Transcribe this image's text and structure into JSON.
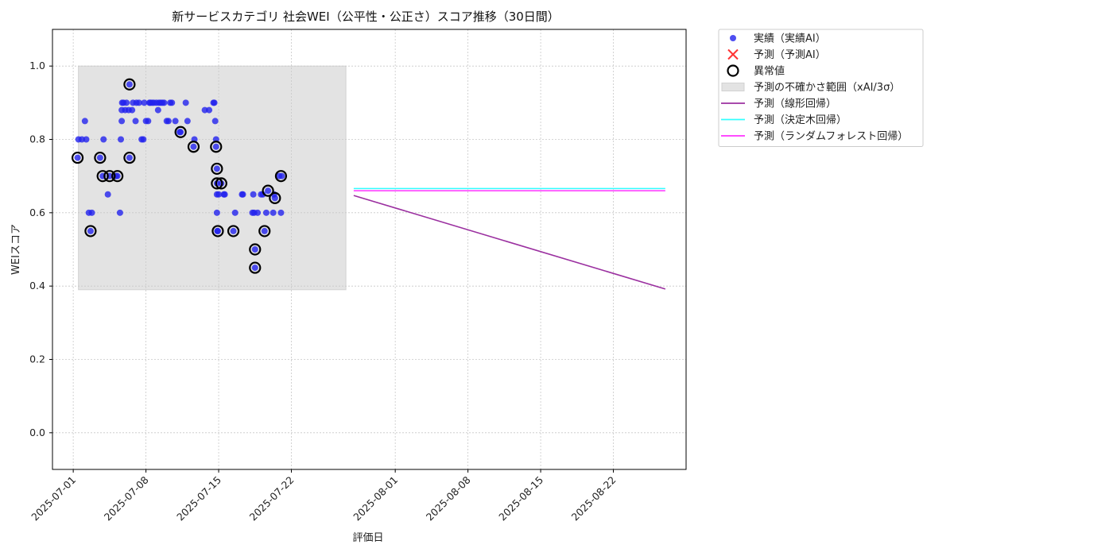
{
  "chart_data": {
    "type": "scatter",
    "title": "新サービスカテゴリ 社会WEI（公平性・公正さ）スコア推移（30日間）",
    "xlabel": "評価日",
    "ylabel": "WEIスコア",
    "xlim": [
      "2025-06-29",
      "2025-08-29"
    ],
    "ylim": [
      -0.1,
      1.1
    ],
    "grid": true,
    "x_ticks": [
      "2025-07-01",
      "2025-07-08",
      "2025-07-15",
      "2025-07-22",
      "2025-08-01",
      "2025-08-08",
      "2025-08-15",
      "2025-08-22"
    ],
    "y_ticks": [
      0.0,
      0.2,
      0.4,
      0.6,
      0.8,
      1.0
    ],
    "uncertainty_band": {
      "label": "予測の不確かさ範囲（xAI/3σ）",
      "x_start": "2025-07-01T12:00",
      "x_end": "2025-07-27T06:00",
      "y_low": 0.39,
      "y_high": 1.0,
      "color": "#e3e3e3"
    },
    "actual": {
      "label": "実績（実績AI）",
      "color": "#2222ee",
      "points": [
        {
          "x": "2025-07-01T10:00",
          "y": 0.75
        },
        {
          "x": "2025-07-01T12:00",
          "y": 0.8
        },
        {
          "x": "2025-07-01T20:00",
          "y": 0.8
        },
        {
          "x": "2025-07-02T03:00",
          "y": 0.85
        },
        {
          "x": "2025-07-02T06:00",
          "y": 0.8
        },
        {
          "x": "2025-07-02T12:00",
          "y": 0.6
        },
        {
          "x": "2025-07-02T16:00",
          "y": 0.55
        },
        {
          "x": "2025-07-02T19:00",
          "y": 0.6
        },
        {
          "x": "2025-07-03T14:00",
          "y": 0.75
        },
        {
          "x": "2025-07-03T22:00",
          "y": 0.8
        },
        {
          "x": "2025-07-03T20:00",
          "y": 0.7
        },
        {
          "x": "2025-07-04T08:00",
          "y": 0.65
        },
        {
          "x": "2025-07-04T12:00",
          "y": 0.7
        },
        {
          "x": "2025-07-05T03:00",
          "y": 0.7
        },
        {
          "x": "2025-07-05T06:00",
          "y": 0.7
        },
        {
          "x": "2025-07-05T12:00",
          "y": 0.6
        },
        {
          "x": "2025-07-05T14:00",
          "y": 0.8
        },
        {
          "x": "2025-07-05T16:00",
          "y": 0.85
        },
        {
          "x": "2025-07-05T16:00",
          "y": 0.88
        },
        {
          "x": "2025-07-05T17:00",
          "y": 0.9
        },
        {
          "x": "2025-07-05T20:00",
          "y": 0.9
        },
        {
          "x": "2025-07-06T00:00",
          "y": 0.88
        },
        {
          "x": "2025-07-06T03:00",
          "y": 0.9
        },
        {
          "x": "2025-07-06T08:00",
          "y": 0.88
        },
        {
          "x": "2025-07-06T10:00",
          "y": 0.95
        },
        {
          "x": "2025-07-06T10:00",
          "y": 0.75
        },
        {
          "x": "2025-07-06T16:00",
          "y": 0.88
        },
        {
          "x": "2025-07-06T18:00",
          "y": 0.9
        },
        {
          "x": "2025-07-07T00:00",
          "y": 0.85
        },
        {
          "x": "2025-07-07T02:00",
          "y": 0.9
        },
        {
          "x": "2025-07-07T08:00",
          "y": 0.9
        },
        {
          "x": "2025-07-07T14:00",
          "y": 0.8
        },
        {
          "x": "2025-07-07T18:00",
          "y": 0.8
        },
        {
          "x": "2025-07-07T20:00",
          "y": 0.9
        },
        {
          "x": "2025-07-08T00:00",
          "y": 0.85
        },
        {
          "x": "2025-07-08T05:00",
          "y": 0.85
        },
        {
          "x": "2025-07-08T08:00",
          "y": 0.9
        },
        {
          "x": "2025-07-08T10:00",
          "y": 0.9
        },
        {
          "x": "2025-07-08T14:00",
          "y": 0.9
        },
        {
          "x": "2025-07-08T18:00",
          "y": 0.9
        },
        {
          "x": "2025-07-09T00:00",
          "y": 0.9
        },
        {
          "x": "2025-07-09T04:00",
          "y": 0.88
        },
        {
          "x": "2025-07-09T06:00",
          "y": 0.9
        },
        {
          "x": "2025-07-09T10:00",
          "y": 0.9
        },
        {
          "x": "2025-07-09T14:00",
          "y": 0.9
        },
        {
          "x": "2025-07-09T18:00",
          "y": 0.9
        },
        {
          "x": "2025-07-10T00:00",
          "y": 0.85
        },
        {
          "x": "2025-07-10T04:00",
          "y": 0.85
        },
        {
          "x": "2025-07-10T08:00",
          "y": 0.9
        },
        {
          "x": "2025-07-10T12:00",
          "y": 0.9
        },
        {
          "x": "2025-07-10T20:00",
          "y": 0.85
        },
        {
          "x": "2025-07-11T06:00",
          "y": 0.82
        },
        {
          "x": "2025-07-11T08:00",
          "y": 0.82
        },
        {
          "x": "2025-07-11T20:00",
          "y": 0.9
        },
        {
          "x": "2025-07-12T00:00",
          "y": 0.85
        },
        {
          "x": "2025-07-12T14:00",
          "y": 0.78
        },
        {
          "x": "2025-07-12T16:00",
          "y": 0.8
        },
        {
          "x": "2025-07-13T16:00",
          "y": 0.88
        },
        {
          "x": "2025-07-14T02:00",
          "y": 0.88
        },
        {
          "x": "2025-07-14T12:00",
          "y": 0.9
        },
        {
          "x": "2025-07-14T14:00",
          "y": 0.9
        },
        {
          "x": "2025-07-14T16:00",
          "y": 0.85
        },
        {
          "x": "2025-07-14T18:00",
          "y": 0.8
        },
        {
          "x": "2025-07-14T18:00",
          "y": 0.78
        },
        {
          "x": "2025-07-14T20:00",
          "y": 0.72
        },
        {
          "x": "2025-07-14T20:00",
          "y": 0.68
        },
        {
          "x": "2025-07-14T20:00",
          "y": 0.65
        },
        {
          "x": "2025-07-14T20:00",
          "y": 0.6
        },
        {
          "x": "2025-07-14T21:00",
          "y": 0.55
        },
        {
          "x": "2025-07-14T22:00",
          "y": 0.55
        },
        {
          "x": "2025-07-15T00:00",
          "y": 0.65
        },
        {
          "x": "2025-07-15T06:00",
          "y": 0.68
        },
        {
          "x": "2025-07-15T12:00",
          "y": 0.65
        },
        {
          "x": "2025-07-15T14:00",
          "y": 0.65
        },
        {
          "x": "2025-07-16T10:00",
          "y": 0.55
        },
        {
          "x": "2025-07-16T14:00",
          "y": 0.6
        },
        {
          "x": "2025-07-17T06:00",
          "y": 0.65
        },
        {
          "x": "2025-07-17T08:00",
          "y": 0.65
        },
        {
          "x": "2025-07-18T06:00",
          "y": 0.6
        },
        {
          "x": "2025-07-18T08:00",
          "y": 0.65
        },
        {
          "x": "2025-07-18T10:00",
          "y": 0.6
        },
        {
          "x": "2025-07-18T12:00",
          "y": 0.5
        },
        {
          "x": "2025-07-18T12:00",
          "y": 0.45
        },
        {
          "x": "2025-07-18T18:00",
          "y": 0.6
        },
        {
          "x": "2025-07-19T02:00",
          "y": 0.65
        },
        {
          "x": "2025-07-19T06:00",
          "y": 0.65
        },
        {
          "x": "2025-07-19T10:00",
          "y": 0.55
        },
        {
          "x": "2025-07-19T14:00",
          "y": 0.6
        },
        {
          "x": "2025-07-19T18:00",
          "y": 0.66
        },
        {
          "x": "2025-07-20T06:00",
          "y": 0.6
        },
        {
          "x": "2025-07-20T08:00",
          "y": 0.65
        },
        {
          "x": "2025-07-20T10:00",
          "y": 0.64
        },
        {
          "x": "2025-07-20T20:00",
          "y": 0.7
        },
        {
          "x": "2025-07-21T00:00",
          "y": 0.6
        },
        {
          "x": "2025-07-21T02:00",
          "y": 0.7
        }
      ]
    },
    "anomalies": {
      "label": "異常値",
      "points": [
        {
          "x": "2025-07-01T10:00",
          "y": 0.75
        },
        {
          "x": "2025-07-02T16:00",
          "y": 0.55
        },
        {
          "x": "2025-07-03T14:00",
          "y": 0.75
        },
        {
          "x": "2025-07-03T20:00",
          "y": 0.7
        },
        {
          "x": "2025-07-04T12:00",
          "y": 0.7
        },
        {
          "x": "2025-07-05T06:00",
          "y": 0.7
        },
        {
          "x": "2025-07-06T10:00",
          "y": 0.95
        },
        {
          "x": "2025-07-06T10:00",
          "y": 0.75
        },
        {
          "x": "2025-07-11T08:00",
          "y": 0.82
        },
        {
          "x": "2025-07-12T14:00",
          "y": 0.78
        },
        {
          "x": "2025-07-14T18:00",
          "y": 0.78
        },
        {
          "x": "2025-07-14T20:00",
          "y": 0.72
        },
        {
          "x": "2025-07-14T20:00",
          "y": 0.68
        },
        {
          "x": "2025-07-15T06:00",
          "y": 0.68
        },
        {
          "x": "2025-07-14T22:00",
          "y": 0.55
        },
        {
          "x": "2025-07-16T10:00",
          "y": 0.55
        },
        {
          "x": "2025-07-18T12:00",
          "y": 0.5
        },
        {
          "x": "2025-07-18T12:00",
          "y": 0.45
        },
        {
          "x": "2025-07-19T10:00",
          "y": 0.55
        },
        {
          "x": "2025-07-19T18:00",
          "y": 0.66
        },
        {
          "x": "2025-07-20T10:00",
          "y": 0.64
        },
        {
          "x": "2025-07-21T00:00",
          "y": 0.7
        }
      ]
    },
    "predicted_ai": {
      "label": "予測（予測AI）",
      "color": "#ff3333",
      "points": []
    },
    "series": [
      {
        "name": "予測（線形回帰）",
        "color": "#9b30a0",
        "x": [
          "2025-07-28T00:00",
          "2025-08-27T00:00"
        ],
        "values": [
          0.647,
          0.392
        ]
      },
      {
        "name": "予測（決定木回帰）",
        "color": "#33ffff",
        "x": [
          "2025-07-28T00:00",
          "2025-08-27T00:00"
        ],
        "values": [
          0.666,
          0.666
        ]
      },
      {
        "name": "予測（ランダムフォレスト回帰）",
        "color": "#ff33ff",
        "x": [
          "2025-07-28T00:00",
          "2025-08-27T00:00"
        ],
        "values": [
          0.66,
          0.66
        ]
      }
    ],
    "legend": {
      "placement": "outside-top-right",
      "entries": [
        {
          "kind": "dot",
          "label": "実績（実績AI）",
          "color": "#2222ee"
        },
        {
          "kind": "x",
          "label": "予測（予測AI）",
          "color": "#ff3333"
        },
        {
          "kind": "ring",
          "label": "異常値",
          "color": "#000000"
        },
        {
          "kind": "patch",
          "label": "予測の不確かさ範囲（xAI/3σ）",
          "color": "#e3e3e3"
        },
        {
          "kind": "line",
          "label": "予測（線形回帰）",
          "color": "#9b30a0"
        },
        {
          "kind": "line",
          "label": "予測（決定木回帰）",
          "color": "#33ffff"
        },
        {
          "kind": "line",
          "label": "予測（ランダムフォレスト回帰）",
          "color": "#ff33ff"
        }
      ]
    }
  }
}
